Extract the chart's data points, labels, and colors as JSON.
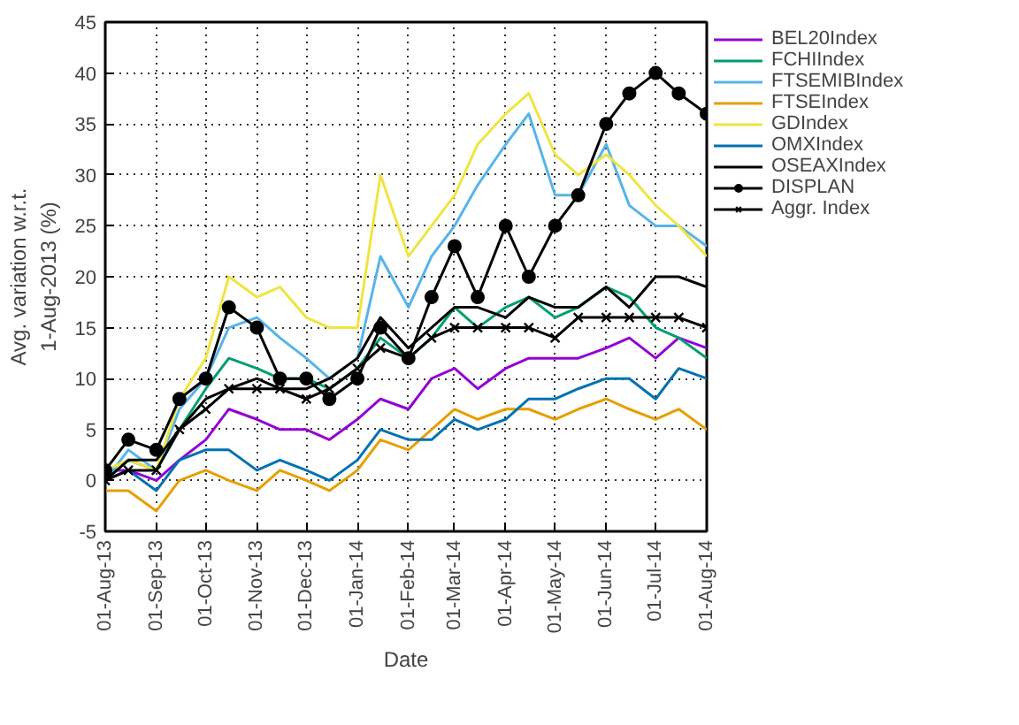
{
  "chart_data": {
    "type": "line",
    "xlabel": "Date",
    "ylabel": "Avg. variation w.r.t.\n1-Aug-2013 (%)",
    "x": [
      "2013-08-01",
      "2013-08-15",
      "2013-09-01",
      "2013-09-15",
      "2013-10-01",
      "2013-10-15",
      "2013-11-01",
      "2013-11-15",
      "2013-12-01",
      "2013-12-15",
      "2014-01-01",
      "2014-01-15",
      "2014-02-01",
      "2014-02-15",
      "2014-03-01",
      "2014-03-15",
      "2014-04-01",
      "2014-04-15",
      "2014-05-01",
      "2014-05-15",
      "2014-06-01",
      "2014-06-15",
      "2014-07-01",
      "2014-07-15",
      "2014-08-01"
    ],
    "xlim": [
      "2013-08-01",
      "2014-08-01"
    ],
    "xticks": [
      {
        "value": "2013-08-01",
        "label": "01-Aug-13"
      },
      {
        "value": "2013-09-01",
        "label": "01-Sep-13"
      },
      {
        "value": "2013-10-01",
        "label": "01-Oct-13"
      },
      {
        "value": "2013-11-01",
        "label": "01-Nov-13"
      },
      {
        "value": "2013-12-01",
        "label": "01-Dec-13"
      },
      {
        "value": "2014-01-01",
        "label": "01-Jan-14"
      },
      {
        "value": "2014-02-01",
        "label": "01-Feb-14"
      },
      {
        "value": "2014-03-01",
        "label": "01-Mar-14"
      },
      {
        "value": "2014-04-01",
        "label": "01-Apr-14"
      },
      {
        "value": "2014-05-01",
        "label": "01-May-14"
      },
      {
        "value": "2014-06-01",
        "label": "01-Jun-14"
      },
      {
        "value": "2014-07-01",
        "label": "01-Jul-14"
      },
      {
        "value": "2014-08-01",
        "label": "01-Aug-14"
      }
    ],
    "ylim": [
      -5,
      45
    ],
    "yticks": [
      -5,
      0,
      5,
      10,
      15,
      20,
      25,
      30,
      35,
      40,
      45
    ],
    "grid": true,
    "legend": "top right",
    "marker": "none",
    "line_style": "solid",
    "series": [
      {
        "name": "BEL20Index",
        "color": "#9400d3",
        "values": [
          1,
          1,
          0,
          2,
          4,
          7,
          6,
          5,
          5,
          4,
          6,
          8,
          7,
          10,
          11,
          9,
          11,
          12,
          12,
          12,
          13,
          14,
          12,
          14,
          13
        ]
      },
      {
        "name": "FCHIIndex",
        "color": "#009e73",
        "values": [
          0,
          2,
          1,
          5,
          9,
          12,
          11,
          10,
          10,
          9,
          11,
          14,
          12,
          14,
          17,
          15,
          17,
          18,
          16,
          17,
          19,
          18,
          15,
          14,
          12
        ]
      },
      {
        "name": "FTSEMIBIndex",
        "color": "#56b4e9",
        "values": [
          0,
          3,
          1,
          7,
          10,
          15,
          16,
          14,
          12,
          10,
          12,
          22,
          17,
          22,
          25,
          29,
          33,
          36,
          28,
          28,
          33,
          27,
          25,
          25,
          23
        ]
      },
      {
        "name": "FTSEIndex",
        "color": "#e69f00",
        "values": [
          -1,
          -1,
          -3,
          0,
          1,
          0,
          -1,
          1,
          0,
          -1,
          1,
          4,
          3,
          5,
          7,
          6,
          7,
          7,
          6,
          7,
          8,
          7,
          6,
          7,
          5
        ]
      },
      {
        "name": "GDIndex",
        "color": "#f0e442",
        "values": [
          1,
          2,
          1,
          8,
          12,
          20,
          18,
          19,
          16,
          15,
          15,
          30,
          22,
          25,
          28,
          33,
          36,
          38,
          32,
          30,
          32,
          30,
          27,
          25,
          22
        ]
      },
      {
        "name": "OMXIndex",
        "color": "#0072b2",
        "values": [
          0,
          1,
          -1,
          2,
          3,
          3,
          1,
          2,
          1,
          0,
          2,
          5,
          4,
          4,
          6,
          5,
          6,
          8,
          8,
          9,
          10,
          10,
          8,
          11,
          10
        ]
      },
      {
        "name": "OSEAXIndex",
        "color": "#000000",
        "values": [
          0,
          2,
          2,
          5,
          8,
          9,
          10,
          9,
          9,
          10,
          12,
          16,
          13,
          15,
          17,
          17,
          16,
          18,
          17,
          17,
          19,
          17,
          20,
          20,
          19
        ]
      },
      {
        "name": "DISPLAN",
        "color": "#000000",
        "marker": "circle",
        "values": [
          1,
          4,
          3,
          8,
          10,
          17,
          15,
          10,
          10,
          8,
          10,
          15,
          12,
          18,
          23,
          18,
          25,
          20,
          25,
          28,
          35,
          38,
          40,
          38,
          36
        ]
      },
      {
        "name": "Aggr. Index",
        "color": "#000000",
        "marker": "cross",
        "values": [
          0,
          1,
          1,
          5,
          7,
          9,
          9,
          9,
          8,
          9,
          11,
          13,
          12,
          14,
          15,
          15,
          15,
          15,
          14,
          16,
          16,
          16,
          16,
          16,
          15
        ]
      }
    ]
  }
}
